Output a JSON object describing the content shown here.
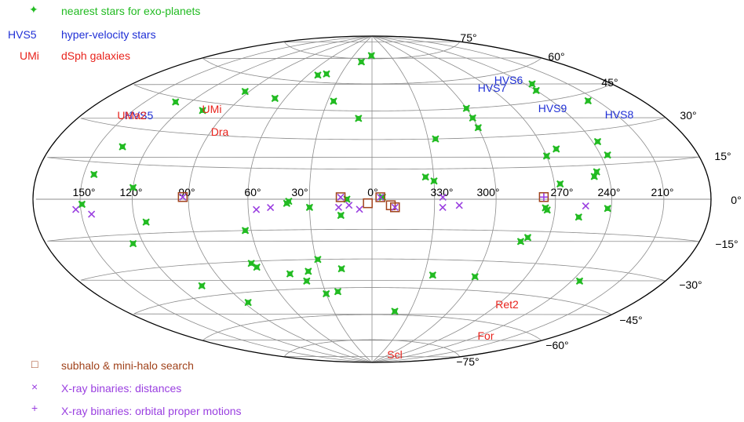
{
  "chart_data": {
    "type": "scatter",
    "projection": "aitoff-hammer galactic sky map",
    "grid": true,
    "longitude_ticks": [
      "150°",
      "120°",
      "90°",
      "60°",
      "30°",
      "0°",
      "330°",
      "300°",
      "270°",
      "240°",
      "210°",
      "0°"
    ],
    "latitude_ticks": [
      "75°",
      "60°",
      "45°",
      "30°",
      "15°",
      "0°",
      "−15°",
      "−30°",
      "−45°",
      "−60°",
      "−75°"
    ],
    "legend": [
      {
        "symbol": "✦",
        "label": "nearest stars for exo-planets",
        "color": "#22bb22",
        "marker": "star"
      },
      {
        "symbol": "HVS5",
        "label": "hyper-velocity stars",
        "color": "#1f2fd6",
        "marker": "text"
      },
      {
        "symbol": "UMi",
        "label": "dSph galaxies",
        "color": "#e8231c",
        "marker": "text"
      },
      {
        "symbol": "□",
        "label": "subhalo & mini-halo search",
        "color": "#a0421b",
        "marker": "square"
      },
      {
        "symbol": "×",
        "label": "X-ray binaries: distances",
        "color": "#9a3fe0",
        "marker": "cross"
      },
      {
        "symbol": "+",
        "label": "X-ray binaries: orbital proper motions",
        "color": "#9a3fe0",
        "marker": "plus"
      }
    ],
    "series": [
      {
        "name": "nearest stars for exo-planets",
        "color": "#22bb22",
        "points": [
          {
            "l": 359,
            "b": 77
          },
          {
            "l": 346,
            "b": 73
          },
          {
            "l": 316,
            "b": 65
          },
          {
            "l": 309,
            "b": 64
          },
          {
            "l": 125,
            "b": 53
          },
          {
            "l": 120,
            "b": 50
          },
          {
            "l": 293,
            "b": 50
          },
          {
            "l": 267,
            "b": 52
          },
          {
            "l": 334,
            "b": 50
          },
          {
            "l": 60,
            "b": 45
          },
          {
            "l": 60,
            "b": 40
          },
          {
            "l": 60,
            "b": 35
          },
          {
            "l": 144,
            "b": 42
          },
          {
            "l": 352,
            "b": 41
          },
          {
            "l": 254,
            "b": 41
          },
          {
            "l": 230,
            "b": 43
          },
          {
            "l": 34,
            "b": 30
          },
          {
            "l": 123,
            "b": 25
          },
          {
            "l": 97,
            "b": 23
          },
          {
            "l": 90,
            "b": 20
          },
          {
            "l": 124,
            "b": 19
          },
          {
            "l": 225,
            "b": 22
          },
          {
            "l": 114,
            "b": 12
          },
          {
            "l": 112,
            "b": 10
          },
          {
            "l": 26,
            "b": 11
          },
          {
            "l": 30,
            "b": 9
          },
          {
            "l": 93,
            "b": 7
          },
          {
            "l": 216,
            "b": 10
          },
          {
            "l": 240,
            "b": 5
          },
          {
            "l": 5,
            "b": 1
          },
          {
            "l": 348,
            "b": 0
          },
          {
            "l": 320,
            "b": -1
          },
          {
            "l": 319,
            "b": -2
          },
          {
            "l": 330,
            "b": -4
          },
          {
            "l": 118,
            "b": -4
          },
          {
            "l": 85,
            "b": -4
          },
          {
            "l": 86,
            "b": -5
          },
          {
            "l": 211,
            "b": -2
          },
          {
            "l": 103,
            "b": -8
          },
          {
            "l": 345,
            "b": -8
          },
          {
            "l": 246,
            "b": -10
          },
          {
            "l": 297,
            "b": -15
          },
          {
            "l": 79,
            "b": -18
          },
          {
            "l": 76,
            "b": -20
          },
          {
            "l": 234,
            "b": -19
          },
          {
            "l": 331,
            "b": -30
          },
          {
            "l": 294,
            "b": -31
          },
          {
            "l": 296,
            "b": -33
          },
          {
            "l": 125,
            "b": -36
          },
          {
            "l": 343,
            "b": -35
          },
          {
            "l": 324,
            "b": -36
          },
          {
            "l": 313,
            "b": -37
          },
          {
            "l": 60,
            "b": -38
          },
          {
            "l": 35,
            "b": -38
          },
          {
            "l": 255,
            "b": -40
          },
          {
            "l": 321,
            "b": -41
          },
          {
            "l": 338,
            "b": -47
          },
          {
            "l": 330,
            "b": -48
          },
          {
            "l": 273,
            "b": -50
          },
          {
            "l": 18,
            "b": -58
          }
        ]
      },
      {
        "name": "subhalo & mini-halo search",
        "color": "#a0421b",
        "points": [
          {
            "l": 4,
            "b": 1
          },
          {
            "l": 345,
            "b": 1
          },
          {
            "l": 267,
            "b": 1
          },
          {
            "l": 84,
            "b": 1
          },
          {
            "l": 358,
            "b": -2
          },
          {
            "l": 9,
            "b": -3
          },
          {
            "l": 11,
            "b": -4
          }
        ]
      },
      {
        "name": "X-ray binaries: distances",
        "color": "#9a3fe0",
        "points": [
          {
            "l": 34,
            "b": 1
          },
          {
            "l": 4,
            "b": 1
          },
          {
            "l": 345,
            "b": 1
          },
          {
            "l": 267,
            "b": 1
          },
          {
            "l": 106,
            "b": -3
          },
          {
            "l": 42,
            "b": -3
          },
          {
            "l": 34,
            "b": -4
          },
          {
            "l": 11,
            "b": -4
          },
          {
            "l": 349,
            "b": -3
          },
          {
            "l": 344,
            "b": -4
          },
          {
            "l": 354,
            "b": -5
          },
          {
            "l": 311,
            "b": -4
          },
          {
            "l": 304,
            "b": -5
          },
          {
            "l": 207,
            "b": -4
          },
          {
            "l": 216,
            "b": -6
          }
        ]
      },
      {
        "name": "X-ray binaries: orbital proper motions",
        "color": "#9a3fe0",
        "points": [
          {
            "l": 84,
            "b": 1
          }
        ]
      }
    ],
    "labeled_objects": [
      {
        "name": "HVS5",
        "kind": "hyper-velocity stars",
        "color": "#1f2fd6"
      },
      {
        "name": "HVS6",
        "kind": "hyper-velocity stars",
        "color": "#1f2fd6"
      },
      {
        "name": "HVS7",
        "kind": "hyper-velocity stars",
        "color": "#1f2fd6"
      },
      {
        "name": "HVS9",
        "kind": "hyper-velocity stars",
        "color": "#1f2fd6"
      },
      {
        "name": "HVS8",
        "kind": "hyper-velocity stars",
        "color": "#1f2fd6"
      },
      {
        "name": "UMa2",
        "kind": "dSph galaxies",
        "color": "#e8231c"
      },
      {
        "name": "UMi",
        "kind": "dSph galaxies",
        "color": "#e8231c"
      },
      {
        "name": "Dra",
        "kind": "dSph galaxies",
        "color": "#e8231c"
      },
      {
        "name": "Ret2",
        "kind": "dSph galaxies",
        "color": "#e8231c"
      },
      {
        "name": "For",
        "kind": "dSph galaxies",
        "color": "#e8231c"
      },
      {
        "name": "Scl",
        "kind": "dSph galaxies",
        "color": "#e8231c"
      }
    ]
  }
}
